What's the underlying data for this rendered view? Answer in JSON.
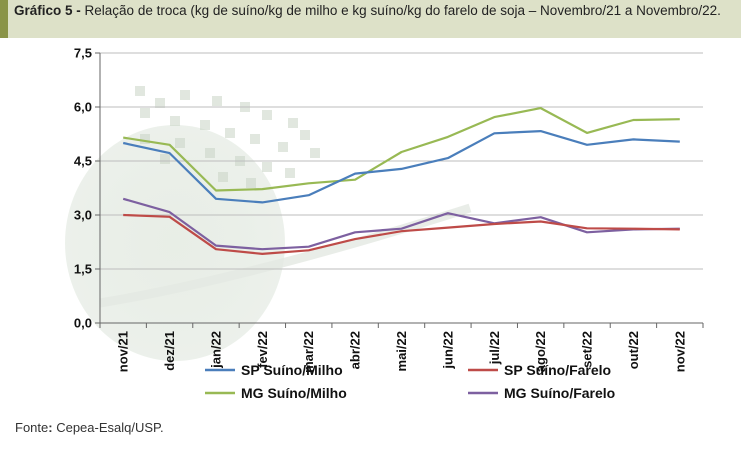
{
  "caption": {
    "label": "Gráfico 5 -",
    "text": " Relação de troca (kg de suíno/kg de milho e kg suíno/kg do farelo de soja – Novembro/21 a Novembro/22."
  },
  "source": {
    "label": "Fonte",
    "colon": ":",
    "text": " Cepea-Esalq/USP."
  },
  "chart_data": {
    "type": "line",
    "title": "Relação de troca (kg de suíno/kg de milho e kg suíno/kg do farelo de soja – Novembro/21 a Novembro/22.",
    "categories": [
      "nov/21",
      "dez/21",
      "jan/22",
      "fev/22",
      "mar/22",
      "abr/22",
      "mai/22",
      "jun/22",
      "jul/22",
      "ago/22",
      "set/22",
      "out/22",
      "nov/22"
    ],
    "ylim": [
      0,
      7.5
    ],
    "yticks": [
      "0,0",
      "1,5",
      "3,0",
      "4,5",
      "6,0",
      "7,5"
    ],
    "ytick_values": [
      0,
      1.5,
      3.0,
      4.5,
      6.0,
      7.5
    ],
    "grid": true,
    "legend_position": "bottom",
    "series": [
      {
        "name": "SP Suíno/Milho",
        "color": "#4a7ebb",
        "values": [
          5.0,
          4.72,
          3.45,
          3.35,
          3.55,
          4.15,
          4.28,
          4.58,
          5.27,
          5.33,
          4.95,
          5.1,
          5.04
        ]
      },
      {
        "name": "SP Suíno/Farelo",
        "color": "#be4b48",
        "values": [
          3.0,
          2.95,
          2.05,
          1.92,
          2.02,
          2.33,
          2.55,
          2.65,
          2.75,
          2.82,
          2.63,
          2.62,
          2.6
        ]
      },
      {
        "name": "MG Suíno/Milho",
        "color": "#98b954",
        "values": [
          5.15,
          4.95,
          3.68,
          3.72,
          3.88,
          3.98,
          4.75,
          5.17,
          5.72,
          5.97,
          5.28,
          5.64,
          5.66
        ]
      },
      {
        "name": "MG Suíno/Farelo",
        "color": "#7d60a0",
        "values": [
          3.45,
          3.08,
          2.15,
          2.05,
          2.12,
          2.52,
          2.62,
          3.05,
          2.77,
          2.94,
          2.52,
          2.6,
          2.62
        ]
      }
    ]
  }
}
